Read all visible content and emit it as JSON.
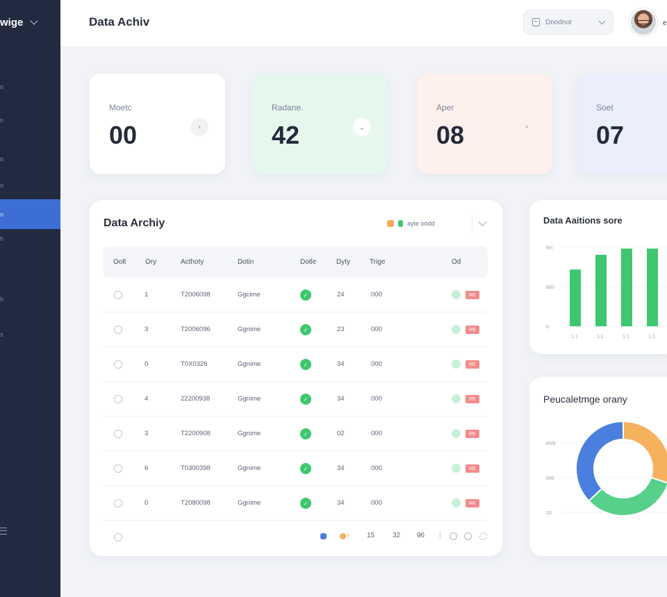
{
  "sidebar": {
    "brand": "wige",
    "items": [
      {
        "label": "o"
      },
      {
        "label": "o"
      },
      {
        "label": "o"
      },
      {
        "label": "o"
      },
      {
        "label": "o",
        "active": true
      },
      {
        "label": "h"
      },
      {
        "label": "h"
      },
      {
        "label": "s"
      }
    ]
  },
  "header": {
    "title": "Data Achiv",
    "search_label": "Dnodnor",
    "user_initial": "e"
  },
  "cards": [
    {
      "label": "Moetc",
      "value": "00",
      "bg": "#ffffff"
    },
    {
      "label": "Radane.",
      "value": "42",
      "bg": "#e6f8ee"
    },
    {
      "label": "Aper",
      "value": "08",
      "bg": "#fdf0ed"
    },
    {
      "label": "Soet",
      "value": "07",
      "bg": "#eaeffb"
    }
  ],
  "table": {
    "title": "Data Archiy",
    "legend": {
      "text": "ayte oodd",
      "color1": "#f5a95a",
      "color2": "#3ec76f"
    },
    "headers": [
      "Oolt",
      "Ory",
      "Acthoty",
      "Dotin",
      "Dotle",
      "Dyty",
      "Trige",
      "Od"
    ],
    "rows": [
      {
        "num": "1",
        "code": "T2006098",
        "name": "Ggcime",
        "qty": "24",
        "value": "000",
        "badge": "RE"
      },
      {
        "num": "3",
        "code": "T2006096",
        "name": "Ggnime",
        "qty": "23",
        "value": "000",
        "badge": "RE"
      },
      {
        "num": "0",
        "code": "T0X0326",
        "name": "Ggnime",
        "qty": "34",
        "value": "000",
        "badge": "RE"
      },
      {
        "num": "4",
        "code": "22200938",
        "name": "Ggnime",
        "qty": "34",
        "value": "000",
        "badge": "RE"
      },
      {
        "num": "3",
        "code": "T2200908",
        "name": "Ggnime",
        "qty": "02",
        "value": "000",
        "badge": "RE"
      },
      {
        "num": "6",
        "code": "T0300398",
        "name": "Ggnime",
        "qty": "34",
        "value": "000",
        "badge": "RE"
      },
      {
        "num": "0",
        "code": "T2080098",
        "name": "Ggnime",
        "qty": "34",
        "value": "000",
        "badge": "RE"
      }
    ],
    "pagination": {
      "p1": "15",
      "p2": "32",
      "p3": "96"
    }
  },
  "bar_panel": {
    "title": "Data Aaitions sore"
  },
  "pie_panel": {
    "title": "Peucaletmge orany"
  },
  "chart_data": [
    {
      "type": "bar",
      "title": "Data Aaitions sore",
      "y_ticks": [
        "8m",
        "800",
        "0"
      ],
      "categories": [
        "1.1",
        "1.1",
        "1.1",
        "1.1"
      ],
      "values": [
        0.73,
        0.92,
        1.0,
        1.0
      ],
      "ylim": [
        0,
        1.1
      ],
      "color": "#3ec76f"
    },
    {
      "type": "pie",
      "title": "Peucaletmge orany",
      "y_ticks": [
        "60/0",
        "600",
        "10"
      ],
      "slices": [
        {
          "value": 0.3,
          "color": "#f5b15e"
        },
        {
          "value": 0.33,
          "color": "#56d08b"
        },
        {
          "value": 0.37,
          "color": "#4a7fe0"
        }
      ]
    }
  ]
}
